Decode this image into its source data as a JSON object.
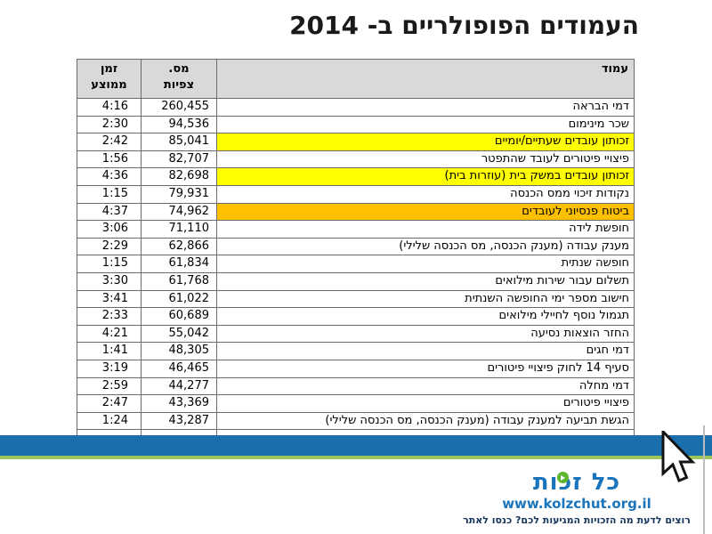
{
  "slide": {
    "title": "העמודים הפופולריים ב- 2014"
  },
  "table": {
    "headers": {
      "page": "עמוד",
      "views_line1": "מס.",
      "views_line2": "צפיות",
      "time_line1": "זמן",
      "time_line2": "ממוצע"
    },
    "rows": [
      {
        "page": "דמי הבראה",
        "views": "260,455",
        "avg_time": "4:16",
        "highlight": "none"
      },
      {
        "page": "שכר מינימום",
        "views": "94,536",
        "avg_time": "2:30",
        "highlight": "none"
      },
      {
        "page": "זכותון עובדים שעתיים/יומיים",
        "views": "85,041",
        "avg_time": "2:42",
        "highlight": "yellow"
      },
      {
        "page": "פיצויי פיטורים לעובד שהתפטר",
        "views": "82,707",
        "avg_time": "1:56",
        "highlight": "none"
      },
      {
        "page": "זכותון עובדים במשק בית (עוזרות בית)",
        "views": "82,698",
        "avg_time": "4:36",
        "highlight": "yellow"
      },
      {
        "page": "נקודות זיכוי ממס הכנסה",
        "views": "79,931",
        "avg_time": "1:15",
        "highlight": "none"
      },
      {
        "page": "ביטוח פנסיוני לעובדים",
        "views": "74,962",
        "avg_time": "4:37",
        "highlight": "orange"
      },
      {
        "page": "חופשת לידה",
        "views": "71,110",
        "avg_time": "3:06",
        "highlight": "none"
      },
      {
        "page": "מענק עבודה (מענק הכנסה, מס הכנסה שלילי)",
        "views": "62,866",
        "avg_time": "2:29",
        "highlight": "none"
      },
      {
        "page": "חופשה שנתית",
        "views": "61,834",
        "avg_time": "1:15",
        "highlight": "none"
      },
      {
        "page": "תשלום עבור שירות מילואים",
        "views": "61,768",
        "avg_time": "3:30",
        "highlight": "none"
      },
      {
        "page": "חישוב מספר ימי החופשה השנתית",
        "views": "61,022",
        "avg_time": "3:41",
        "highlight": "none"
      },
      {
        "page": "תגמול נוסף לחיילי מילואים",
        "views": "60,689",
        "avg_time": "2:33",
        "highlight": "none"
      },
      {
        "page": "החזר הוצאות נסיעה",
        "views": "55,042",
        "avg_time": "4:21",
        "highlight": "none"
      },
      {
        "page": "דמי חגים",
        "views": "48,305",
        "avg_time": "1:41",
        "highlight": "none"
      },
      {
        "page": "סעיף 14 לחוק פיצויי פיטורים",
        "views": "46,465",
        "avg_time": "3:19",
        "highlight": "none"
      },
      {
        "page": "דמי מחלה",
        "views": "44,277",
        "avg_time": "2:59",
        "highlight": "none"
      },
      {
        "page": "פיצויי פיטורים",
        "views": "43,369",
        "avg_time": "2:47",
        "highlight": "none"
      },
      {
        "page": "הגשת תביעה למענק עבודה (מענק הכנסה, מס הכנסה שלילי)",
        "views": "43,287",
        "avg_time": "1:24",
        "highlight": "none"
      }
    ]
  },
  "footer": {
    "logo_text": "כל זכות",
    "url": "www.kolzchut.org.il",
    "tagline": "רוצים לדעת מה הזכויות המגיעות לכם? כנסו לאתר"
  },
  "colors": {
    "highlight_yellow": "#FFFF00",
    "highlight_orange": "#FFC000",
    "header_gray": "#D9D9D9",
    "bar_blue": "#1B6FAD",
    "bar_green": "#9CC65A",
    "logo_blue": "#1B75BC",
    "logo_green": "#5CB72E",
    "tagline_navy": "#17365D"
  }
}
